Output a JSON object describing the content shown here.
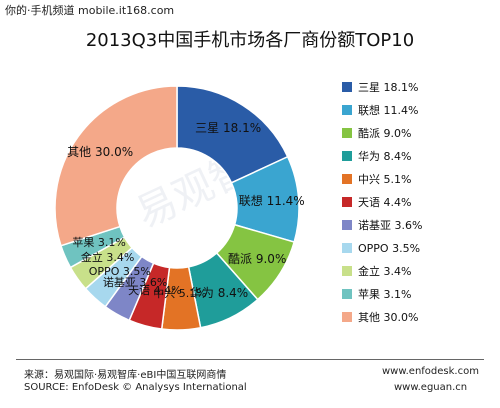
{
  "watermark": "你的·手机频道 mobile.it168.com",
  "chart_data": {
    "type": "pie",
    "title": "2013Q3中国手机市场各厂商份额TOP10",
    "series": [
      {
        "name": "三星",
        "label": "18.1%",
        "value": 18.1,
        "color": "#2a5ca7"
      },
      {
        "name": "联想",
        "label": "11.4%",
        "value": 11.4,
        "color": "#3aa5d0"
      },
      {
        "name": "酷派",
        "label": "9.0%",
        "value": 9.0,
        "color": "#85c442"
      },
      {
        "name": "华为",
        "label": "8.4%",
        "value": 8.4,
        "color": "#1f9d9a"
      },
      {
        "name": "中兴",
        "label": "5.1%",
        "value": 5.1,
        "color": "#e37325"
      },
      {
        "name": "天语",
        "label": "4.4%",
        "value": 4.4,
        "color": "#c62828"
      },
      {
        "name": "诺基亚",
        "label": "3.6%",
        "value": 3.6,
        "color": "#7e86c7"
      },
      {
        "name": "OPPO",
        "label": "3.5%",
        "value": 3.5,
        "color": "#a7d8ee"
      },
      {
        "name": "金立",
        "label": "3.4%",
        "value": 3.4,
        "color": "#c8e08a"
      },
      {
        "name": "苹果",
        "label": "3.1%",
        "value": 3.1,
        "color": "#6fc3c0"
      },
      {
        "name": "其他",
        "label": "30.0%",
        "value": 30.0,
        "color": "#f4a889"
      }
    ],
    "legend_placement": "right"
  },
  "footer": {
    "source_cn": "来源：易观国际·易观智库·eBI中国互联网商情",
    "source_en": "SOURCE: EnfoDesk © Analysys International",
    "site1": "www.enfodesk.com",
    "site2": "www.eguan.cn"
  },
  "background_mark": "易观智库"
}
